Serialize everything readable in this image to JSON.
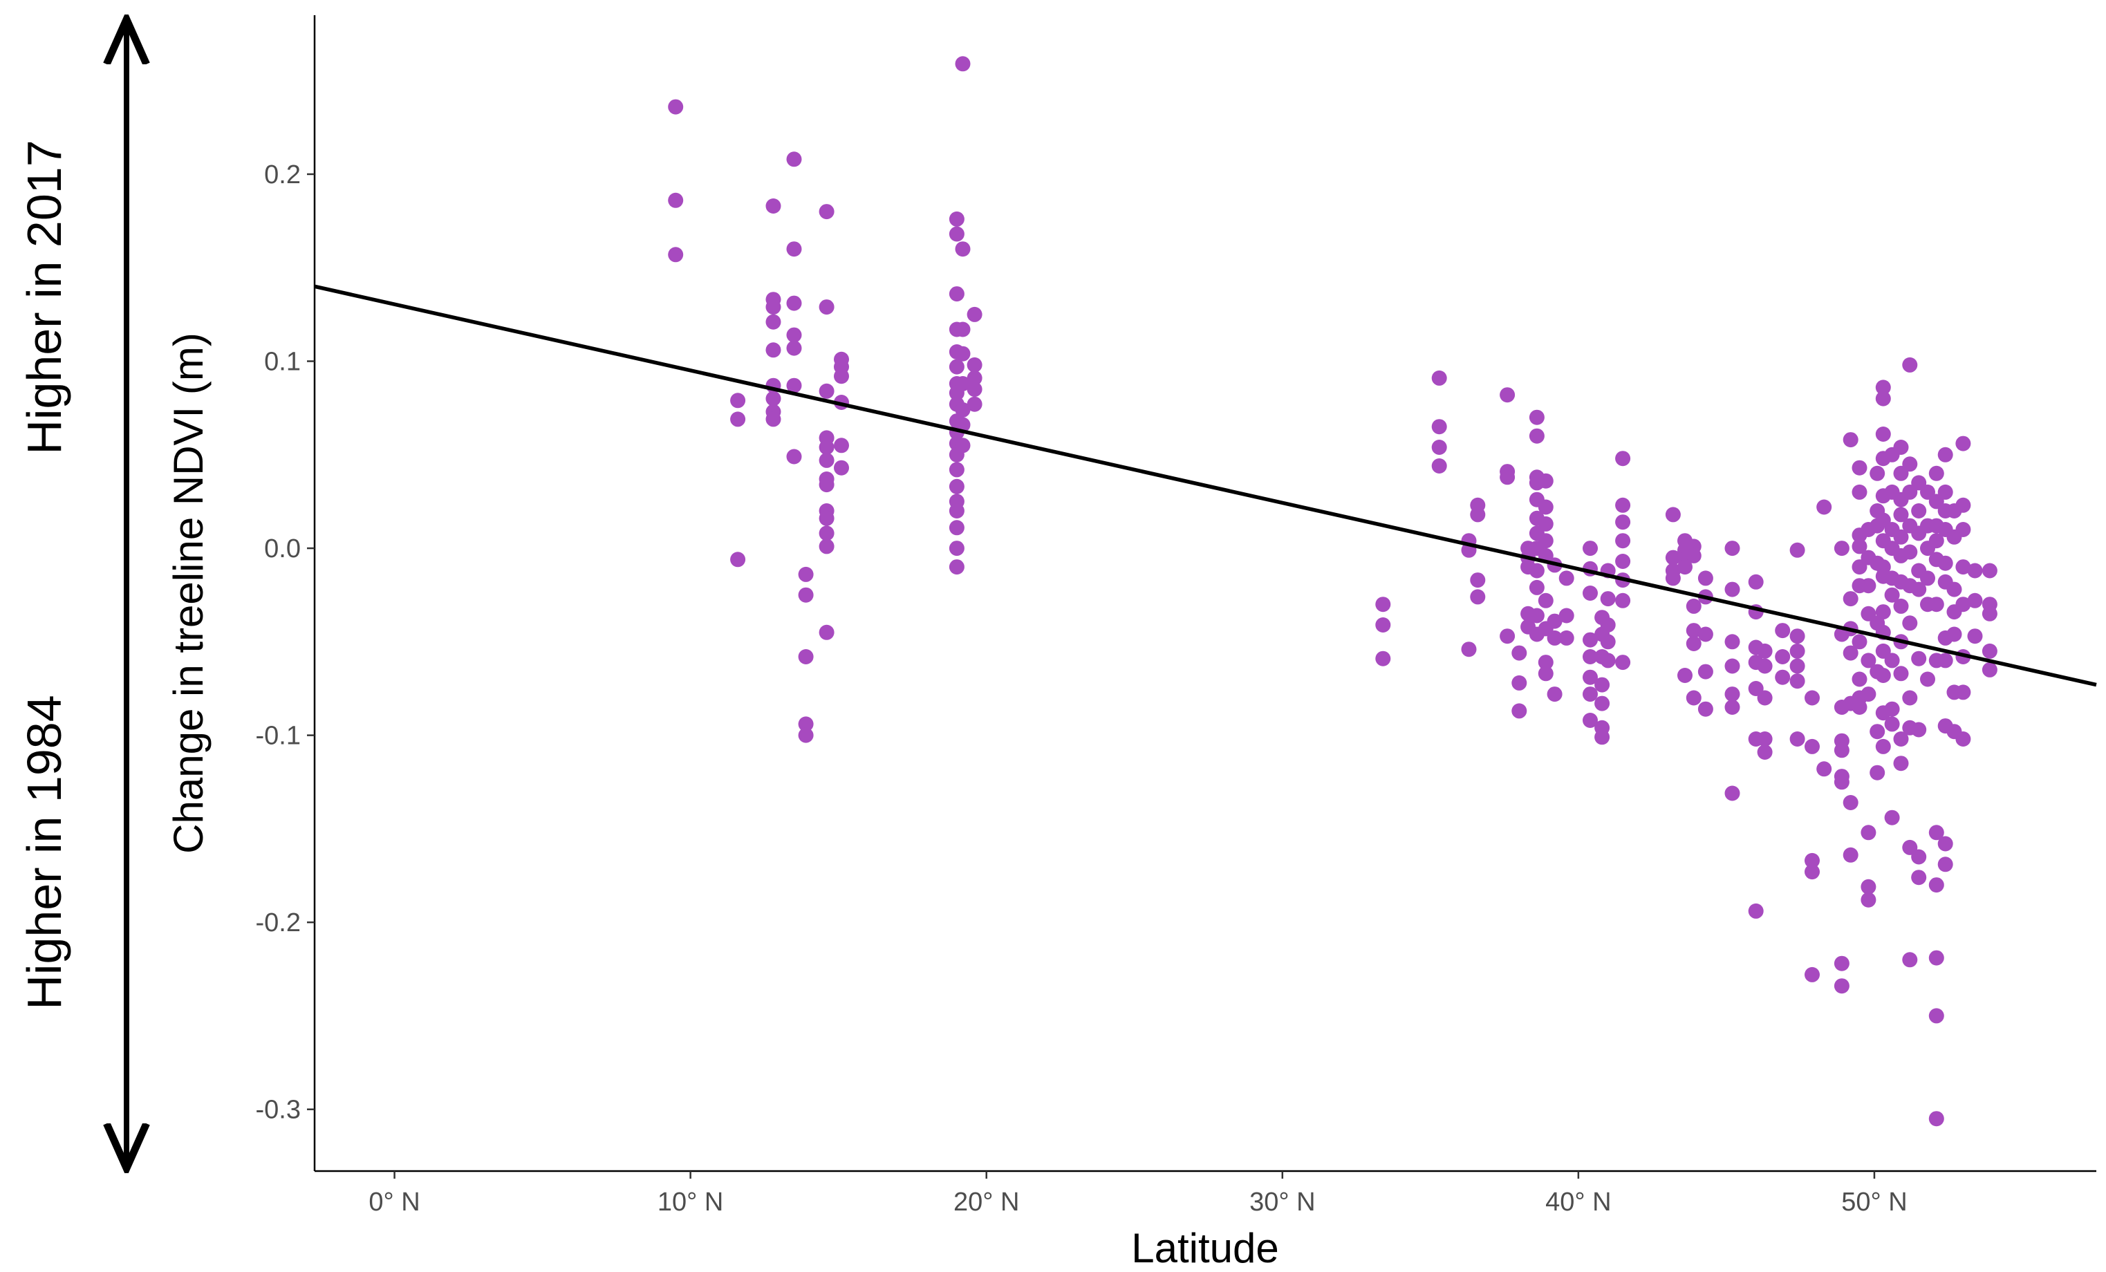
{
  "chart_data": {
    "type": "scatter",
    "xlabel": "Latitude",
    "ylabel": "Change in treeline NDVI (m)",
    "xlim": [
      -2.7,
      57.5
    ],
    "ylim": [
      -0.333,
      0.285
    ],
    "x_ticks": [
      0,
      10,
      20,
      30,
      40,
      50
    ],
    "x_tick_labels": [
      "0° N",
      "10° N",
      "20° N",
      "30° N",
      "40° N",
      "50° N"
    ],
    "y_ticks": [
      0.2,
      0.1,
      0.0,
      -0.1,
      -0.2,
      -0.3
    ],
    "y_tick_labels": [
      "0.2",
      "0.1",
      "0.0",
      "-0.1",
      "-0.2",
      "-0.3"
    ],
    "grid": false,
    "point_color": "#A74ABF",
    "trend_line": {
      "x": [
        -2.7,
        57.5
      ],
      "y": [
        0.14,
        -0.073
      ],
      "color": "#000000"
    },
    "side_annotation": {
      "top_label": "Higher in 2017",
      "bottom_label": "Higher in 1984",
      "arrow": "double-headed vertical"
    },
    "points": [
      [
        9.5,
        0.236
      ],
      [
        9.5,
        0.186
      ],
      [
        9.5,
        0.157
      ],
      [
        11.6,
        0.079
      ],
      [
        11.6,
        0.069
      ],
      [
        11.6,
        -0.006
      ],
      [
        12.8,
        0.183
      ],
      [
        12.8,
        0.133
      ],
      [
        12.8,
        0.129
      ],
      [
        12.8,
        0.121
      ],
      [
        12.8,
        0.106
      ],
      [
        12.8,
        0.087
      ],
      [
        12.8,
        0.08
      ],
      [
        12.8,
        0.073
      ],
      [
        12.8,
        0.069
      ],
      [
        13.5,
        0.208
      ],
      [
        13.5,
        0.16
      ],
      [
        13.5,
        0.131
      ],
      [
        13.5,
        0.114
      ],
      [
        13.5,
        0.107
      ],
      [
        13.5,
        0.087
      ],
      [
        13.5,
        0.049
      ],
      [
        13.9,
        -0.014
      ],
      [
        13.9,
        -0.025
      ],
      [
        13.9,
        -0.058
      ],
      [
        13.9,
        -0.094
      ],
      [
        13.9,
        -0.1
      ],
      [
        14.6,
        0.18
      ],
      [
        14.6,
        0.129
      ],
      [
        14.6,
        0.084
      ],
      [
        14.6,
        0.059
      ],
      [
        14.6,
        0.054
      ],
      [
        14.6,
        0.047
      ],
      [
        14.6,
        0.037
      ],
      [
        14.6,
        0.034
      ],
      [
        14.6,
        0.02
      ],
      [
        14.6,
        0.016
      ],
      [
        14.6,
        0.008
      ],
      [
        14.6,
        0.001
      ],
      [
        14.6,
        -0.045
      ],
      [
        15.1,
        0.101
      ],
      [
        15.1,
        0.097
      ],
      [
        15.1,
        0.092
      ],
      [
        15.1,
        0.078
      ],
      [
        15.1,
        0.055
      ],
      [
        15.1,
        0.043
      ],
      [
        19.0,
        0.176
      ],
      [
        19.0,
        0.168
      ],
      [
        19.0,
        0.136
      ],
      [
        19.0,
        0.117
      ],
      [
        19.0,
        0.105
      ],
      [
        19.0,
        0.097
      ],
      [
        19.0,
        0.088
      ],
      [
        19.0,
        0.083
      ],
      [
        19.0,
        0.077
      ],
      [
        19.0,
        0.068
      ],
      [
        19.0,
        0.062
      ],
      [
        19.0,
        0.056
      ],
      [
        19.0,
        0.05
      ],
      [
        19.0,
        0.042
      ],
      [
        19.0,
        0.033
      ],
      [
        19.0,
        0.025
      ],
      [
        19.0,
        0.02
      ],
      [
        19.0,
        0.011
      ],
      [
        19.0,
        0.0
      ],
      [
        19.0,
        -0.01
      ],
      [
        19.2,
        0.259
      ],
      [
        19.2,
        0.16
      ],
      [
        19.2,
        0.117
      ],
      [
        19.2,
        0.104
      ],
      [
        19.2,
        0.088
      ],
      [
        19.2,
        0.074
      ],
      [
        19.2,
        0.066
      ],
      [
        19.2,
        0.055
      ],
      [
        19.6,
        0.125
      ],
      [
        19.6,
        0.098
      ],
      [
        19.6,
        0.091
      ],
      [
        19.6,
        0.085
      ],
      [
        19.6,
        0.077
      ],
      [
        33.4,
        -0.03
      ],
      [
        33.4,
        -0.041
      ],
      [
        33.4,
        -0.059
      ],
      [
        35.3,
        0.091
      ],
      [
        35.3,
        0.065
      ],
      [
        35.3,
        0.054
      ],
      [
        35.3,
        0.044
      ],
      [
        36.3,
        0.004
      ],
      [
        36.3,
        -0.001
      ],
      [
        36.3,
        -0.054
      ],
      [
        36.6,
        0.023
      ],
      [
        36.6,
        0.018
      ],
      [
        36.6,
        -0.017
      ],
      [
        36.6,
        -0.026
      ],
      [
        37.6,
        0.082
      ],
      [
        37.6,
        0.041
      ],
      [
        37.6,
        0.038
      ],
      [
        37.6,
        -0.047
      ],
      [
        38.0,
        -0.056
      ],
      [
        38.0,
        -0.072
      ],
      [
        38.0,
        -0.087
      ],
      [
        38.3,
        0.0
      ],
      [
        38.3,
        -0.005
      ],
      [
        38.3,
        -0.01
      ],
      [
        38.3,
        -0.035
      ],
      [
        38.3,
        -0.042
      ],
      [
        38.6,
        0.07
      ],
      [
        38.6,
        0.06
      ],
      [
        38.6,
        0.038
      ],
      [
        38.6,
        0.035
      ],
      [
        38.6,
        0.026
      ],
      [
        38.6,
        0.016
      ],
      [
        38.6,
        0.008
      ],
      [
        38.6,
        0.0
      ],
      [
        38.6,
        -0.012
      ],
      [
        38.6,
        -0.021
      ],
      [
        38.6,
        -0.036
      ],
      [
        38.6,
        -0.046
      ],
      [
        38.9,
        0.036
      ],
      [
        38.9,
        0.022
      ],
      [
        38.9,
        0.013
      ],
      [
        38.9,
        0.004
      ],
      [
        38.9,
        -0.004
      ],
      [
        38.9,
        -0.028
      ],
      [
        38.9,
        -0.043
      ],
      [
        38.9,
        -0.061
      ],
      [
        38.9,
        -0.067
      ],
      [
        39.2,
        -0.009
      ],
      [
        39.2,
        -0.039
      ],
      [
        39.2,
        -0.048
      ],
      [
        39.2,
        -0.078
      ],
      [
        39.6,
        -0.016
      ],
      [
        39.6,
        -0.036
      ],
      [
        39.6,
        -0.048
      ],
      [
        40.4,
        0.0
      ],
      [
        40.4,
        -0.011
      ],
      [
        40.4,
        -0.024
      ],
      [
        40.4,
        -0.049
      ],
      [
        40.4,
        -0.058
      ],
      [
        40.4,
        -0.069
      ],
      [
        40.4,
        -0.078
      ],
      [
        40.4,
        -0.092
      ],
      [
        40.8,
        -0.037
      ],
      [
        40.8,
        -0.046
      ],
      [
        40.8,
        -0.058
      ],
      [
        40.8,
        -0.073
      ],
      [
        40.8,
        -0.083
      ],
      [
        40.8,
        -0.096
      ],
      [
        40.8,
        -0.101
      ],
      [
        41.0,
        -0.012
      ],
      [
        41.0,
        -0.027
      ],
      [
        41.0,
        -0.041
      ],
      [
        41.0,
        -0.05
      ],
      [
        41.0,
        -0.06
      ],
      [
        41.5,
        0.048
      ],
      [
        41.5,
        0.023
      ],
      [
        41.5,
        0.014
      ],
      [
        41.5,
        0.004
      ],
      [
        41.5,
        -0.007
      ],
      [
        41.5,
        -0.017
      ],
      [
        41.5,
        -0.028
      ],
      [
        41.5,
        -0.061
      ],
      [
        43.2,
        0.018
      ],
      [
        43.2,
        -0.005
      ],
      [
        43.2,
        -0.012
      ],
      [
        43.2,
        -0.016
      ],
      [
        43.6,
        0.004
      ],
      [
        43.6,
        -0.001
      ],
      [
        43.6,
        -0.006
      ],
      [
        43.6,
        -0.01
      ],
      [
        43.6,
        -0.068
      ],
      [
        43.9,
        0.001
      ],
      [
        43.9,
        -0.004
      ],
      [
        43.9,
        -0.031
      ],
      [
        43.9,
        -0.044
      ],
      [
        43.9,
        -0.051
      ],
      [
        43.9,
        -0.08
      ],
      [
        44.3,
        -0.016
      ],
      [
        44.3,
        -0.026
      ],
      [
        44.3,
        -0.046
      ],
      [
        44.3,
        -0.066
      ],
      [
        44.3,
        -0.086
      ],
      [
        45.2,
        0.0
      ],
      [
        45.2,
        -0.022
      ],
      [
        45.2,
        -0.05
      ],
      [
        45.2,
        -0.063
      ],
      [
        45.2,
        -0.078
      ],
      [
        45.2,
        -0.085
      ],
      [
        45.2,
        -0.131
      ],
      [
        46.0,
        -0.018
      ],
      [
        46.0,
        -0.034
      ],
      [
        46.0,
        -0.053
      ],
      [
        46.0,
        -0.061
      ],
      [
        46.0,
        -0.075
      ],
      [
        46.0,
        -0.102
      ],
      [
        46.0,
        -0.194
      ],
      [
        46.3,
        -0.055
      ],
      [
        46.3,
        -0.063
      ],
      [
        46.3,
        -0.08
      ],
      [
        46.3,
        -0.102
      ],
      [
        46.3,
        -0.109
      ],
      [
        46.9,
        -0.044
      ],
      [
        46.9,
        -0.058
      ],
      [
        46.9,
        -0.069
      ],
      [
        47.4,
        -0.001
      ],
      [
        47.4,
        -0.047
      ],
      [
        47.4,
        -0.055
      ],
      [
        47.4,
        -0.063
      ],
      [
        47.4,
        -0.071
      ],
      [
        47.4,
        -0.102
      ],
      [
        47.9,
        -0.08
      ],
      [
        47.9,
        -0.106
      ],
      [
        47.9,
        -0.167
      ],
      [
        47.9,
        -0.173
      ],
      [
        47.9,
        -0.228
      ],
      [
        48.3,
        0.022
      ],
      [
        48.3,
        -0.118
      ],
      [
        48.9,
        0.0
      ],
      [
        48.9,
        -0.046
      ],
      [
        48.9,
        -0.085
      ],
      [
        48.9,
        -0.103
      ],
      [
        48.9,
        -0.108
      ],
      [
        48.9,
        -0.122
      ],
      [
        48.9,
        -0.125
      ],
      [
        48.9,
        -0.222
      ],
      [
        48.9,
        -0.234
      ],
      [
        49.2,
        0.058
      ],
      [
        49.2,
        -0.027
      ],
      [
        49.2,
        -0.043
      ],
      [
        49.2,
        -0.056
      ],
      [
        49.2,
        -0.083
      ],
      [
        49.2,
        -0.136
      ],
      [
        49.2,
        -0.164
      ],
      [
        49.5,
        0.043
      ],
      [
        49.5,
        0.03
      ],
      [
        49.5,
        0.007
      ],
      [
        49.5,
        0.001
      ],
      [
        49.5,
        -0.01
      ],
      [
        49.5,
        -0.02
      ],
      [
        49.5,
        -0.05
      ],
      [
        49.5,
        -0.07
      ],
      [
        49.5,
        -0.08
      ],
      [
        49.5,
        -0.085
      ],
      [
        49.8,
        0.01
      ],
      [
        49.8,
        -0.005
      ],
      [
        49.8,
        -0.02
      ],
      [
        49.8,
        -0.035
      ],
      [
        49.8,
        -0.06
      ],
      [
        49.8,
        -0.078
      ],
      [
        49.8,
        -0.152
      ],
      [
        49.8,
        -0.181
      ],
      [
        49.8,
        -0.188
      ],
      [
        50.1,
        0.04
      ],
      [
        50.1,
        0.02
      ],
      [
        50.1,
        0.012
      ],
      [
        50.1,
        -0.008
      ],
      [
        50.1,
        -0.04
      ],
      [
        50.1,
        -0.066
      ],
      [
        50.1,
        -0.098
      ],
      [
        50.1,
        -0.12
      ],
      [
        50.3,
        0.086
      ],
      [
        50.3,
        0.08
      ],
      [
        50.3,
        0.061
      ],
      [
        50.3,
        0.048
      ],
      [
        50.3,
        0.028
      ],
      [
        50.3,
        0.015
      ],
      [
        50.3,
        0.004
      ],
      [
        50.3,
        -0.01
      ],
      [
        50.3,
        -0.015
      ],
      [
        50.3,
        -0.034
      ],
      [
        50.3,
        -0.045
      ],
      [
        50.3,
        -0.055
      ],
      [
        50.3,
        -0.068
      ],
      [
        50.3,
        -0.088
      ],
      [
        50.3,
        -0.106
      ],
      [
        50.6,
        0.05
      ],
      [
        50.6,
        0.03
      ],
      [
        50.6,
        0.01
      ],
      [
        50.6,
        0.0
      ],
      [
        50.6,
        -0.016
      ],
      [
        50.6,
        -0.025
      ],
      [
        50.6,
        -0.06
      ],
      [
        50.6,
        -0.086
      ],
      [
        50.6,
        -0.094
      ],
      [
        50.6,
        -0.144
      ],
      [
        50.9,
        0.054
      ],
      [
        50.9,
        0.04
      ],
      [
        50.9,
        0.026
      ],
      [
        50.9,
        0.018
      ],
      [
        50.9,
        0.006
      ],
      [
        50.9,
        -0.004
      ],
      [
        50.9,
        -0.018
      ],
      [
        50.9,
        -0.031
      ],
      [
        50.9,
        -0.05
      ],
      [
        50.9,
        -0.067
      ],
      [
        50.9,
        -0.102
      ],
      [
        50.9,
        -0.115
      ],
      [
        51.2,
        0.098
      ],
      [
        51.2,
        0.045
      ],
      [
        51.2,
        0.03
      ],
      [
        51.2,
        0.012
      ],
      [
        51.2,
        -0.002
      ],
      [
        51.2,
        -0.02
      ],
      [
        51.2,
        -0.04
      ],
      [
        51.2,
        -0.08
      ],
      [
        51.2,
        -0.096
      ],
      [
        51.2,
        -0.16
      ],
      [
        51.2,
        -0.22
      ],
      [
        51.5,
        0.035
      ],
      [
        51.5,
        0.02
      ],
      [
        51.5,
        0.008
      ],
      [
        51.5,
        -0.012
      ],
      [
        51.5,
        -0.022
      ],
      [
        51.5,
        -0.059
      ],
      [
        51.5,
        -0.097
      ],
      [
        51.5,
        -0.165
      ],
      [
        51.5,
        -0.176
      ],
      [
        51.8,
        0.03
      ],
      [
        51.8,
        0.012
      ],
      [
        51.8,
        0.0
      ],
      [
        51.8,
        -0.016
      ],
      [
        51.8,
        -0.03
      ],
      [
        51.8,
        -0.07
      ],
      [
        52.1,
        0.04
      ],
      [
        52.1,
        0.025
      ],
      [
        52.1,
        0.012
      ],
      [
        52.1,
        0.004
      ],
      [
        52.1,
        -0.006
      ],
      [
        52.1,
        -0.03
      ],
      [
        52.1,
        -0.06
      ],
      [
        52.1,
        -0.152
      ],
      [
        52.1,
        -0.18
      ],
      [
        52.1,
        -0.219
      ],
      [
        52.1,
        -0.25
      ],
      [
        52.1,
        -0.305
      ],
      [
        52.4,
        0.05
      ],
      [
        52.4,
        0.03
      ],
      [
        52.4,
        0.02
      ],
      [
        52.4,
        0.01
      ],
      [
        52.4,
        -0.008
      ],
      [
        52.4,
        -0.018
      ],
      [
        52.4,
        -0.048
      ],
      [
        52.4,
        -0.06
      ],
      [
        52.4,
        -0.095
      ],
      [
        52.4,
        -0.158
      ],
      [
        52.4,
        -0.169
      ],
      [
        52.7,
        0.02
      ],
      [
        52.7,
        0.006
      ],
      [
        52.7,
        -0.022
      ],
      [
        52.7,
        -0.034
      ],
      [
        52.7,
        -0.046
      ],
      [
        52.7,
        -0.077
      ],
      [
        52.7,
        -0.098
      ],
      [
        53.0,
        0.056
      ],
      [
        53.0,
        0.023
      ],
      [
        53.0,
        0.01
      ],
      [
        53.0,
        -0.01
      ],
      [
        53.0,
        -0.03
      ],
      [
        53.0,
        -0.058
      ],
      [
        53.0,
        -0.077
      ],
      [
        53.0,
        -0.102
      ],
      [
        53.4,
        -0.012
      ],
      [
        53.4,
        -0.028
      ],
      [
        53.4,
        -0.047
      ],
      [
        53.9,
        -0.012
      ],
      [
        53.9,
        -0.03
      ],
      [
        53.9,
        -0.035
      ],
      [
        53.9,
        -0.055
      ],
      [
        53.9,
        -0.065
      ]
    ]
  }
}
